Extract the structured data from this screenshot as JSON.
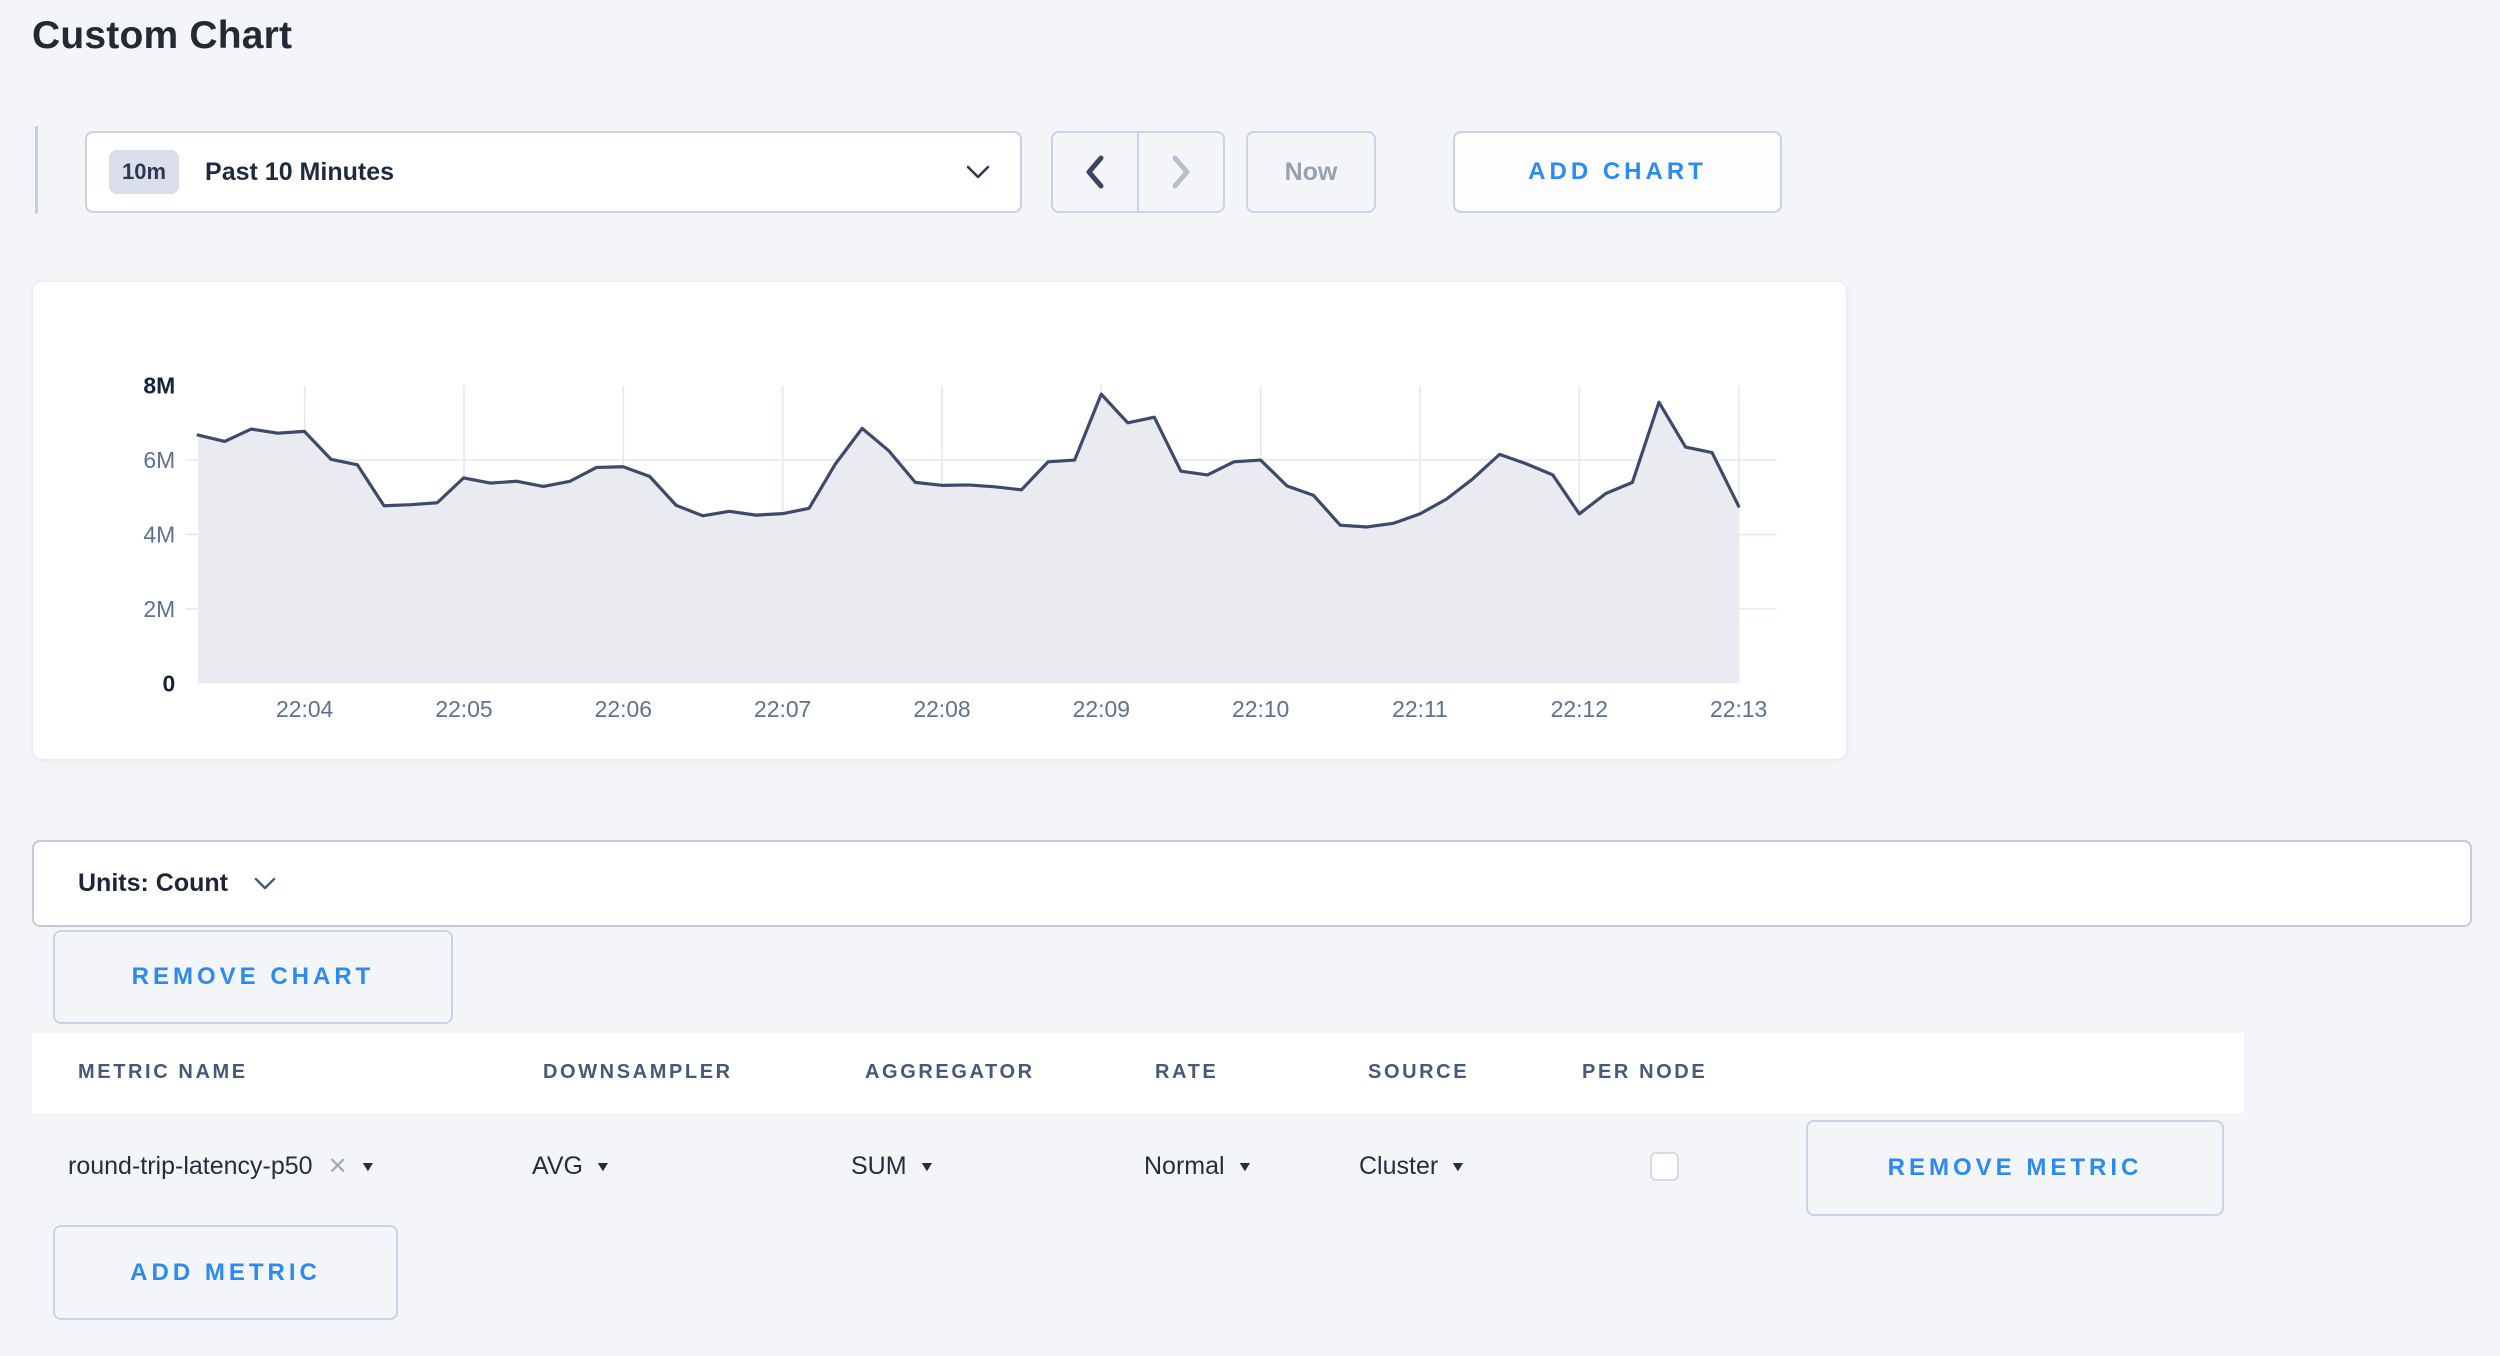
{
  "page": {
    "title": "Custom Chart",
    "background_color": "#f4f5f9",
    "accent_blue": "#2b8bf2"
  },
  "toolbar": {
    "time_range": {
      "badge": "10m",
      "selected": "Past 10 Minutes"
    },
    "now_label": "Now",
    "add_chart_label": "ADD CHART"
  },
  "chart_data": {
    "type": "area",
    "title": "",
    "xlabel": "",
    "ylabel": "",
    "x_ticks": [
      "22:04",
      "22:05",
      "22:06",
      "22:07",
      "22:08",
      "22:09",
      "22:10",
      "22:11",
      "22:12",
      "22:13"
    ],
    "y_ticks": [
      "8M",
      "6M",
      "4M",
      "2M",
      "0"
    ],
    "ylim": [
      0,
      8000000
    ],
    "grid": true,
    "legend": "none",
    "values_unit": "millions",
    "series": [
      {
        "name": "round-trip-latency-p50",
        "values": [
          6.67,
          6.5,
          6.83,
          6.72,
          6.77,
          6.02,
          5.87,
          4.77,
          4.8,
          4.85,
          5.52,
          5.38,
          5.43,
          5.29,
          5.43,
          5.8,
          5.82,
          5.56,
          4.78,
          4.5,
          4.62,
          4.52,
          4.56,
          4.7,
          5.9,
          6.85,
          6.25,
          5.4,
          5.32,
          5.33,
          5.28,
          5.2,
          5.95,
          6.0,
          7.77,
          7.0,
          7.15,
          5.7,
          5.6,
          5.95,
          6.0,
          5.3,
          5.05,
          4.25,
          4.2,
          4.3,
          4.55,
          4.95,
          5.5,
          6.15,
          5.9,
          5.6,
          4.55,
          5.1,
          5.4,
          7.55,
          6.35,
          6.2,
          4.76
        ]
      }
    ],
    "colors": {
      "line": "#3e4a69",
      "fill": "#e9ebf1",
      "grid": "#e3e7f0",
      "tick_label": "#5d7190",
      "tick_label_strong": "#16233f"
    }
  },
  "units_bar": {
    "label": "Units: Count"
  },
  "chart_controls": {
    "remove_chart_label": "REMOVE CHART",
    "add_metric_label": "ADD METRIC"
  },
  "metrics_table": {
    "columns": [
      "METRIC NAME",
      "DOWNSAMPLER",
      "AGGREGATOR",
      "RATE",
      "SOURCE",
      "PER NODE"
    ],
    "rows": [
      {
        "metric_name": "round-trip-latency-p50",
        "clear_glyph": "✕",
        "downsampler": "AVG",
        "aggregator": "SUM",
        "rate": "Normal",
        "source": "Cluster",
        "per_node_checked": false,
        "remove_label": "REMOVE METRIC"
      }
    ]
  }
}
